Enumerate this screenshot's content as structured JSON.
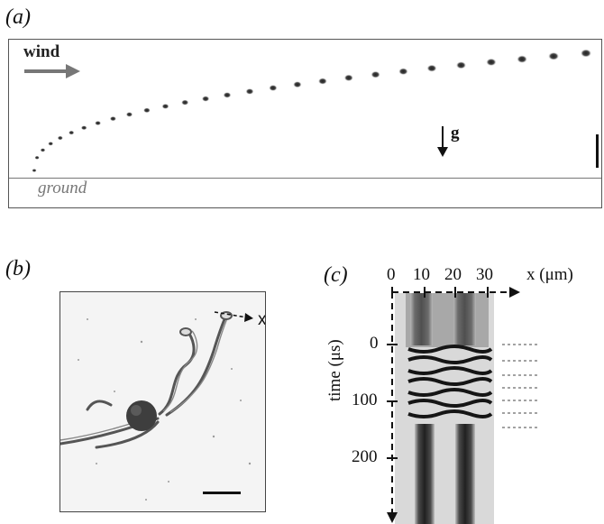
{
  "panels": {
    "a": {
      "label": "(a)",
      "wind": "wind",
      "gravity": "g",
      "ground": "ground"
    },
    "b": {
      "label": "(b)",
      "axis": "x"
    },
    "c": {
      "label": "(c)",
      "x_ticks": [
        "0",
        "10",
        "20",
        "30"
      ],
      "x_label": "x (μm)",
      "y_ticks": [
        "0",
        "100",
        "200"
      ],
      "y_label": "time (μs)"
    }
  }
}
